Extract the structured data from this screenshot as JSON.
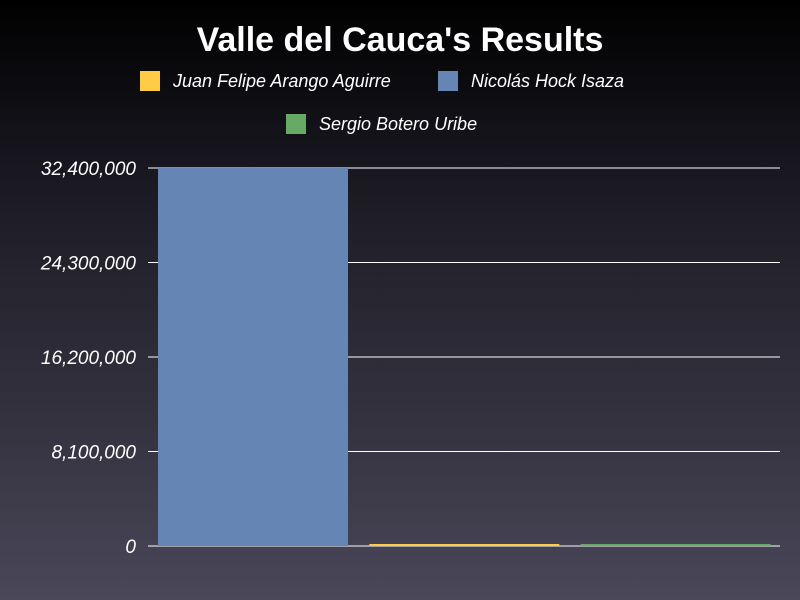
{
  "chart_data": {
    "type": "bar",
    "title": "Valle del Cauca's Results",
    "xlabel": "",
    "ylabel": "",
    "ylim": [
      0,
      32400000
    ],
    "yticks": [
      "0",
      "8,100,000",
      "16,200,000",
      "24,300,000",
      "32,400,000"
    ],
    "ytick_values": [
      0,
      8100000,
      16200000,
      24300000,
      32400000
    ],
    "grid": true,
    "legend_position": "top",
    "series": [
      {
        "name": "Nicolás Hock Isaza",
        "value": 32400000,
        "color": "#6586b4"
      },
      {
        "name": "Juan Felipe Arango Aguirre",
        "value": 60000,
        "color": "#ffcc44"
      },
      {
        "name": "Sergio Botero Uribe",
        "value": 60000,
        "color": "#66aa66"
      }
    ],
    "legend": [
      {
        "name": "Juan Felipe Arango Aguirre",
        "color": "#ffcc44"
      },
      {
        "name": "Nicolás Hock Isaza",
        "color": "#6586b4"
      },
      {
        "name": "Sergio Botero Uribe",
        "color": "#66aa66"
      }
    ]
  }
}
